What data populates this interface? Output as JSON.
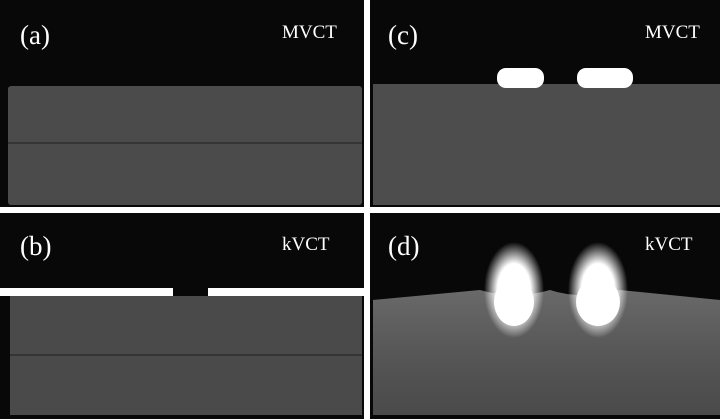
{
  "panels": [
    {
      "label": "(a)",
      "modality": "MVCT"
    },
    {
      "label": "(c)",
      "modality": "MVCT"
    },
    {
      "label": "(b)",
      "modality": "kVCT"
    },
    {
      "label": "(d)",
      "modality": "kVCT"
    }
  ]
}
